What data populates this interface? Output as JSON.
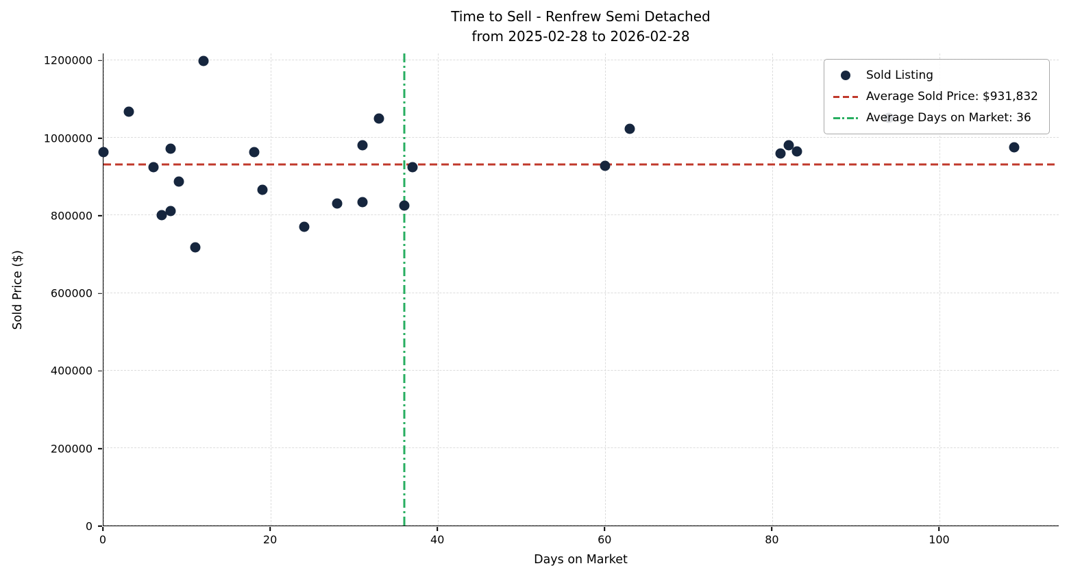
{
  "chart_data": {
    "type": "scatter",
    "title": "Time to Sell - Renfrew Semi Detached",
    "subtitle": "from 2025-02-28 to 2026-02-28",
    "xlabel": "Days on Market",
    "ylabel": "Sold Price ($)",
    "xlim": [
      0,
      114.3
    ],
    "ylim": [
      0,
      1218000
    ],
    "xticks": [
      0,
      20,
      40,
      60,
      80,
      100
    ],
    "yticks": [
      0,
      200000,
      400000,
      600000,
      800000,
      1000000,
      1200000
    ],
    "grid": true,
    "colors": {
      "scatter": "#16263e",
      "avg_price": "#c0392b",
      "avg_days": "#27ae60"
    },
    "series": [
      {
        "name": "Sold Listing",
        "type": "scatter",
        "points": [
          [
            0,
            963000
          ],
          [
            3,
            1068000
          ],
          [
            6,
            925000
          ],
          [
            7,
            800000
          ],
          [
            8,
            972000
          ],
          [
            8,
            812000
          ],
          [
            9,
            888000
          ],
          [
            11,
            717000
          ],
          [
            12,
            1198000
          ],
          [
            18,
            963000
          ],
          [
            19,
            867000
          ],
          [
            24,
            770000
          ],
          [
            28,
            830000
          ],
          [
            31,
            982000
          ],
          [
            31,
            835000
          ],
          [
            33,
            1050000
          ],
          [
            36,
            825000
          ],
          [
            37,
            924000
          ],
          [
            60,
            928000
          ],
          [
            63,
            1024000
          ],
          [
            81,
            960000
          ],
          [
            82,
            981000
          ],
          [
            83,
            965000
          ],
          [
            94,
            1052000
          ],
          [
            109,
            975000
          ]
        ]
      }
    ],
    "avg_price_line": {
      "label": "Average Sold Price: $931,832",
      "value": 931832,
      "style": "dashed"
    },
    "avg_days_line": {
      "label": "Average Days on Market: 36",
      "value": 36,
      "style": "dashdot"
    },
    "legend": {
      "position": "upper right",
      "items": [
        "Sold Listing",
        "Average Sold Price: $931,832",
        "Average Days on Market: 36"
      ]
    }
  }
}
